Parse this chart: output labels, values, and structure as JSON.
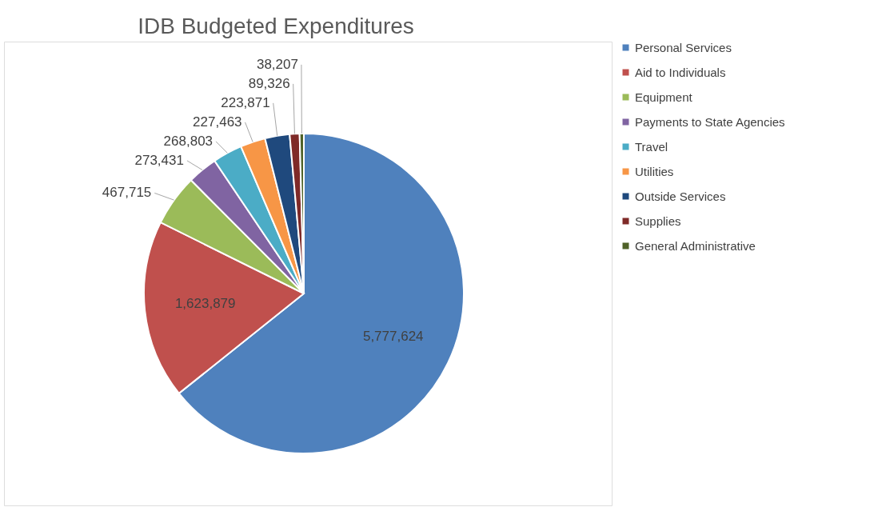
{
  "chart_data": {
    "type": "pie",
    "title": "IDB Budgeted Expenditures",
    "categories": [
      "Personal Services",
      "Aid to Individuals",
      "Equipment",
      "Payments to State Agencies",
      "Travel",
      "Utilities",
      "Outside Services",
      "Supplies",
      "General Administrative"
    ],
    "values": [
      5777624,
      1623879,
      467715,
      273431,
      268803,
      227463,
      223871,
      89326,
      38207
    ],
    "colors": [
      "#4f81bd",
      "#c0504d",
      "#9bbb59",
      "#8064a2",
      "#4bacc6",
      "#f79646",
      "#1f497d",
      "#7f2a28",
      "#4f6228"
    ],
    "value_labels": [
      "5,777,624",
      "1,623,879",
      "467,715",
      "273,431",
      "268,803",
      "227,463",
      "223,871",
      "89,326",
      "38,207"
    ],
    "legend": "right"
  }
}
